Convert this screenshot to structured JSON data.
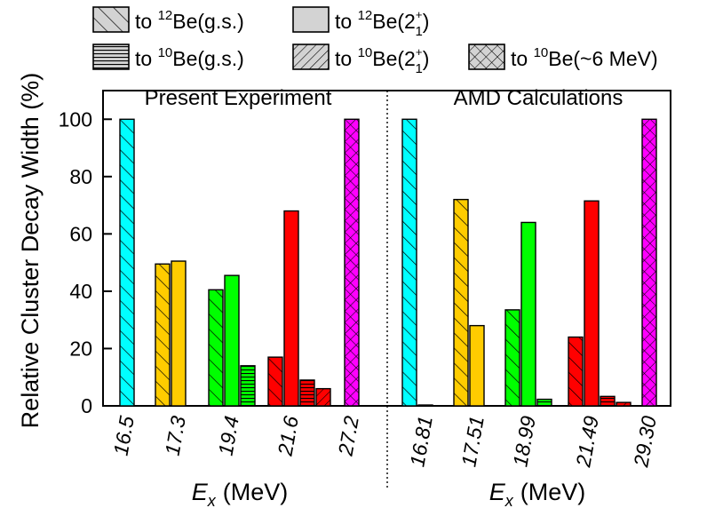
{
  "chart_data": {
    "type": "bar",
    "ylabel": "Relative Cluster Decay Width (%)",
    "ylim": [
      0,
      110
    ],
    "yticks": [
      0,
      20,
      40,
      60,
      80,
      100
    ],
    "xlabel_italic": "E",
    "xlabel_sub": "x",
    "xlabel_unit": "(MeV)",
    "legend": [
      {
        "key": "be12_gs",
        "pre": "to ",
        "sup": "12",
        "main": "Be(g.s.)",
        "sub": "",
        "post": "",
        "pattern": "diag"
      },
      {
        "key": "be12_2p",
        "pre": "to ",
        "sup": "12",
        "main": "Be(2",
        "sub": "1",
        "sup2": "+",
        "post": ")",
        "pattern": "solid"
      },
      {
        "key": "be10_gs",
        "pre": "to ",
        "sup": "10",
        "main": "Be(g.s.)",
        "sub": "",
        "post": "",
        "pattern": "horiz"
      },
      {
        "key": "be10_2p",
        "pre": "to ",
        "sup": "10",
        "main": "Be(2",
        "sub": "1",
        "sup2": "+",
        "post": ")",
        "pattern": "backdiag"
      },
      {
        "key": "be10_6",
        "pre": "to ",
        "sup": "10",
        "main": "Be(~6 MeV)",
        "sub": "",
        "post": "",
        "pattern": "cross"
      }
    ],
    "panels": [
      {
        "title": "Present Experiment",
        "groups": [
          {
            "label": "16.5",
            "color": "#00ffff",
            "bars": [
              {
                "series": "be12_gs",
                "value": 100
              }
            ]
          },
          {
            "label": "17.3",
            "color": "#ffcc00",
            "bars": [
              {
                "series": "be12_gs",
                "value": 49.5
              },
              {
                "series": "be12_2p",
                "value": 50.5
              }
            ]
          },
          {
            "label": "19.4",
            "color": "#00ff00",
            "bars": [
              {
                "series": "be12_gs",
                "value": 40.5
              },
              {
                "series": "be12_2p",
                "value": 45.5
              },
              {
                "series": "be10_gs",
                "value": 14
              }
            ]
          },
          {
            "label": "21.6",
            "color": "#ff0000",
            "bars": [
              {
                "series": "be12_gs",
                "value": 17
              },
              {
                "series": "be12_2p",
                "value": 68
              },
              {
                "series": "be10_gs",
                "value": 9
              },
              {
                "series": "be10_2p",
                "value": 6
              }
            ]
          },
          {
            "label": "27.2",
            "color": "#ff00ff",
            "bars": [
              {
                "series": "be10_6",
                "value": 100
              }
            ]
          }
        ]
      },
      {
        "title": "AMD Calculations",
        "groups": [
          {
            "label": "16.81",
            "color": "#00ffff",
            "bars": [
              {
                "series": "be12_gs",
                "value": 100
              },
              {
                "series": "be12_2p",
                "value": 0.3
              }
            ]
          },
          {
            "label": "17.51",
            "color": "#ffcc00",
            "bars": [
              {
                "series": "be12_gs",
                "value": 72
              },
              {
                "series": "be12_2p",
                "value": 28
              }
            ]
          },
          {
            "label": "18.99",
            "color": "#00ff00",
            "bars": [
              {
                "series": "be12_gs",
                "value": 33.5
              },
              {
                "series": "be12_2p",
                "value": 64
              },
              {
                "series": "be10_gs",
                "value": 2.3
              }
            ]
          },
          {
            "label": "21.49",
            "color": "#ff0000",
            "bars": [
              {
                "series": "be12_gs",
                "value": 24
              },
              {
                "series": "be12_2p",
                "value": 71.5
              },
              {
                "series": "be10_gs",
                "value": 3.3
              },
              {
                "series": "be10_2p",
                "value": 1.2
              }
            ]
          },
          {
            "label": "29.30",
            "color": "#ff00ff",
            "bars": [
              {
                "series": "be10_6",
                "value": 100
              }
            ]
          }
        ]
      }
    ]
  }
}
